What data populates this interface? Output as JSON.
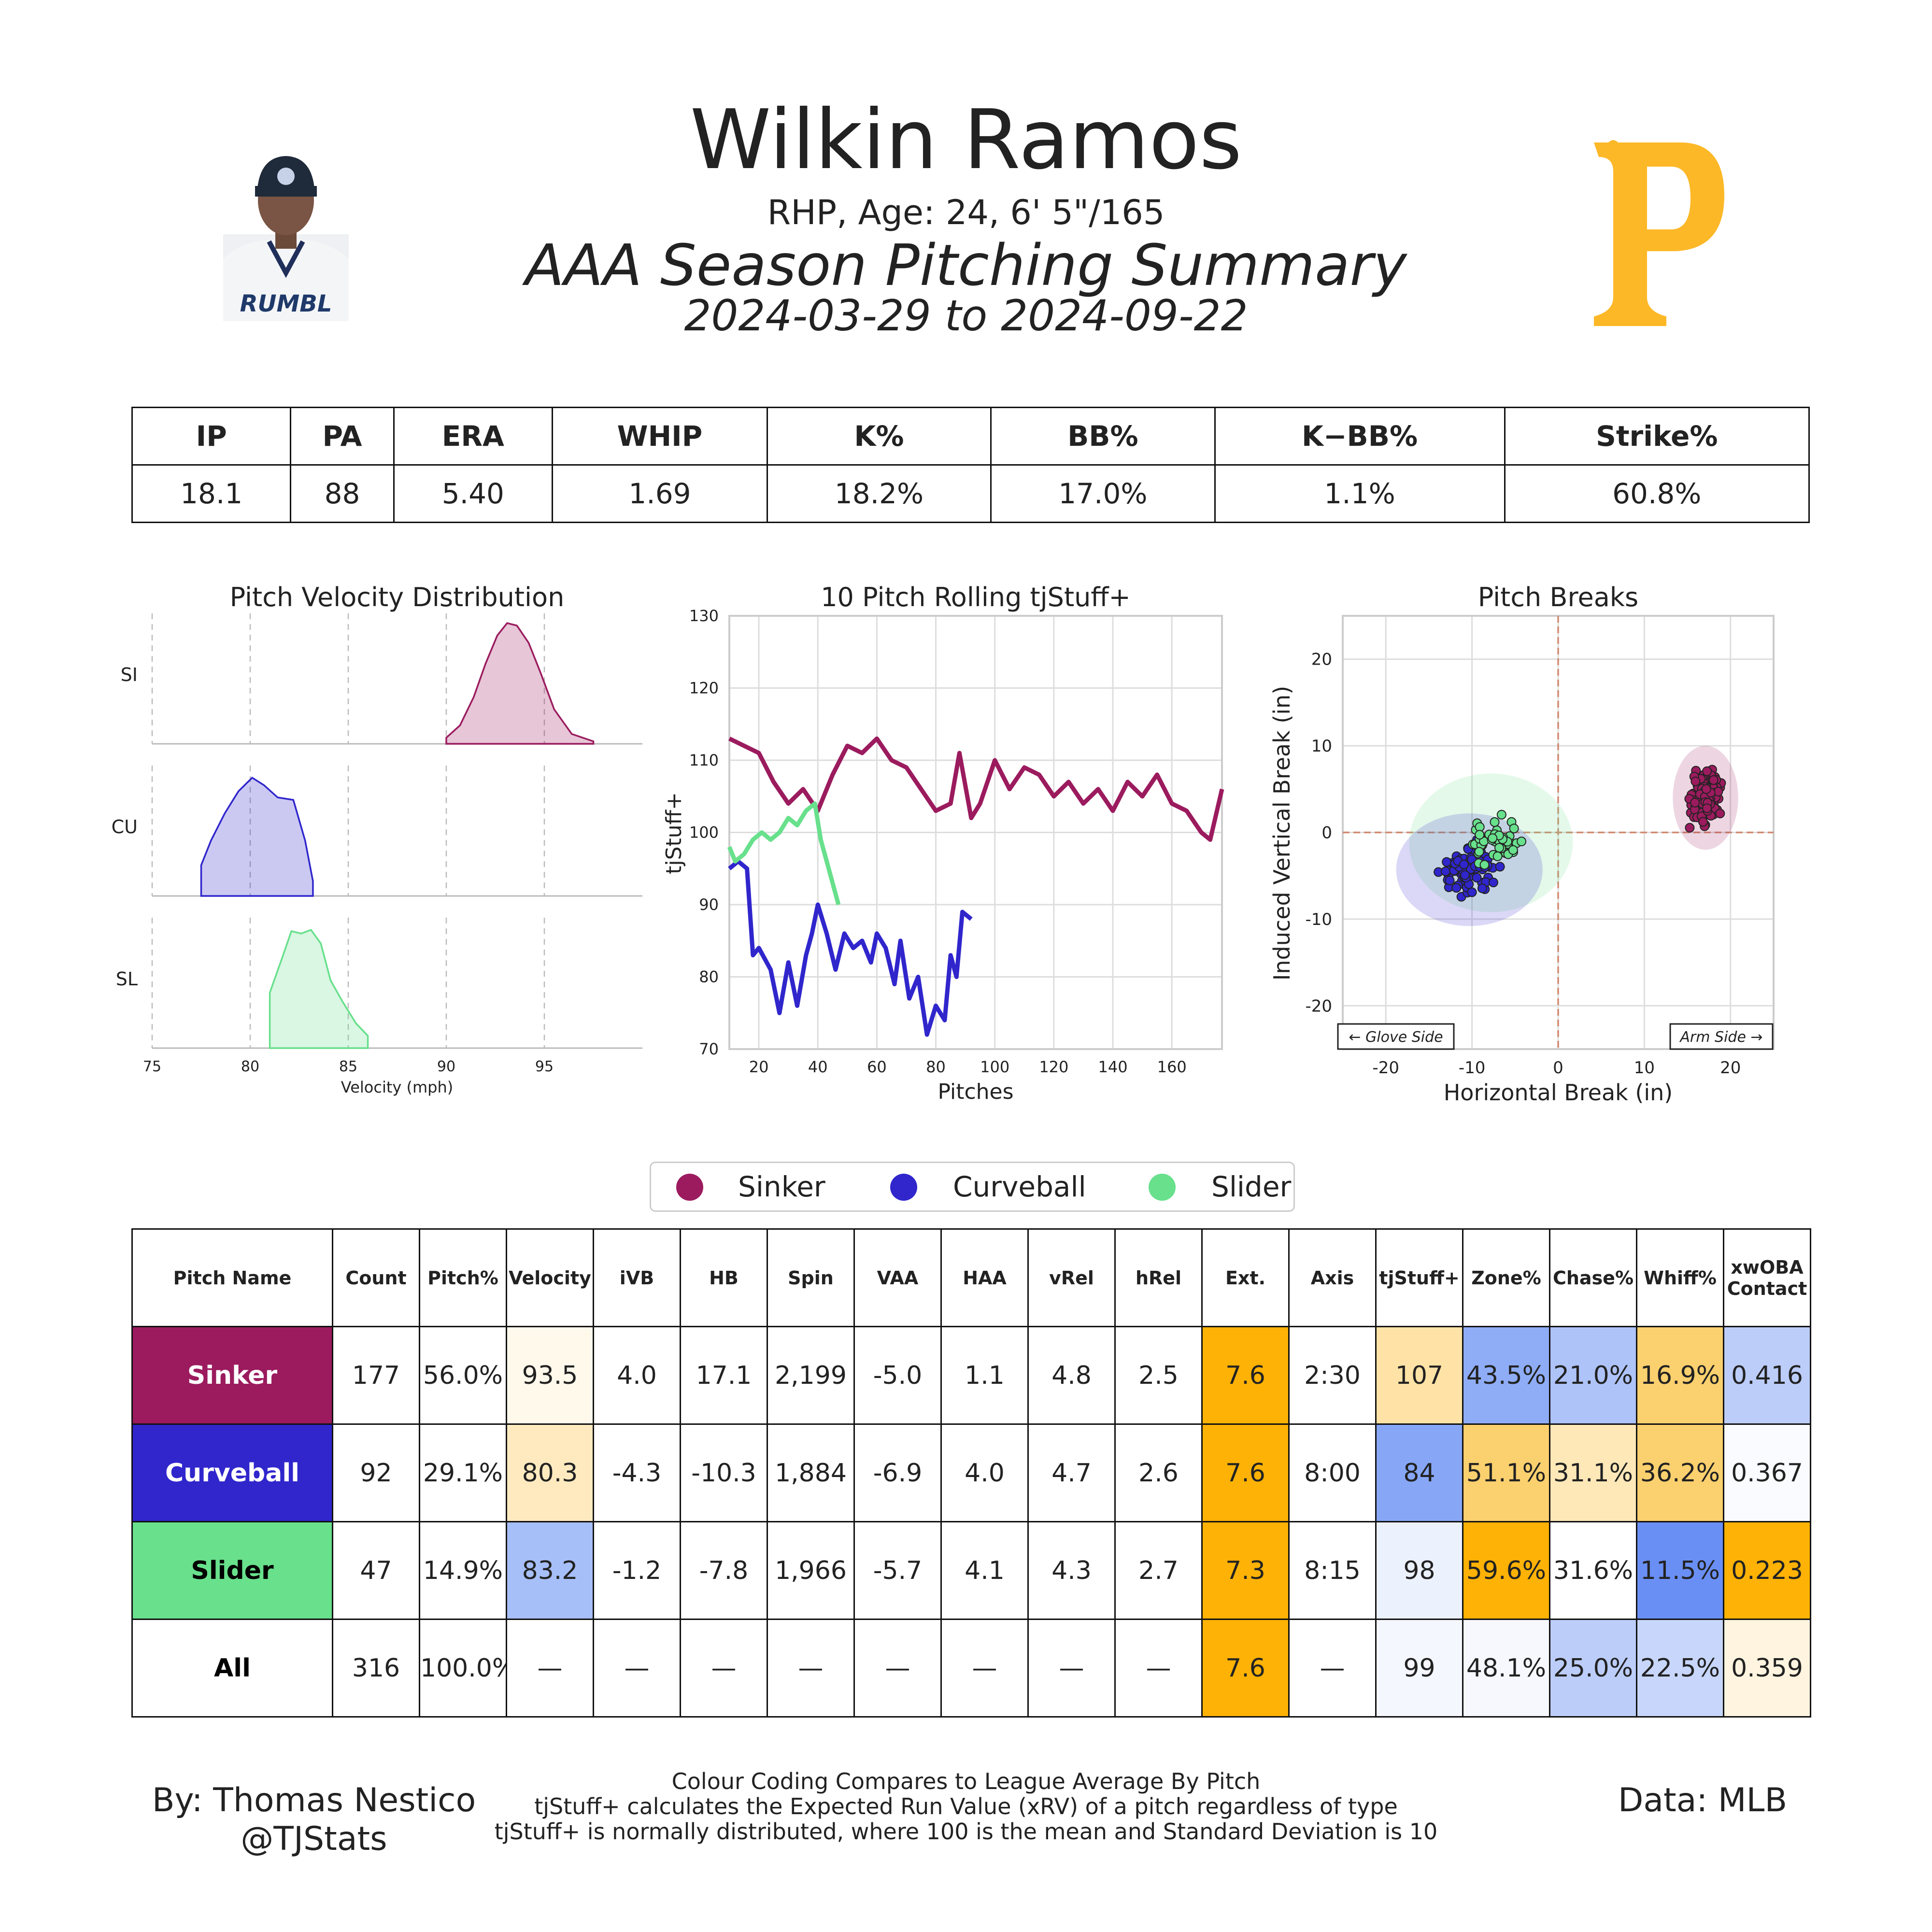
{
  "header": {
    "name": "Wilkin Ramos",
    "info": "RHP, Age: 24, 6' 5\"/165",
    "title": "AAA Season Pitching Summary",
    "dates": "2024-03-29 to 2024-09-22"
  },
  "stats": {
    "headers": [
      "IP",
      "PA",
      "ERA",
      "WHIP",
      "K%",
      "BB%",
      "K−BB%",
      "Strike%"
    ],
    "values": [
      "18.1",
      "88",
      "5.40",
      "1.69",
      "18.2%",
      "17.0%",
      "1.1%",
      "60.8%"
    ]
  },
  "colors": {
    "sinker": "#9b1b5e",
    "curveball": "#3026cc",
    "slider": "#68e08c",
    "logo": "#fdb827"
  },
  "chart_data": [
    {
      "type": "area",
      "title": "Pitch Velocity Distribution",
      "xlabel": "Velocity (mph)",
      "xlim": [
        75,
        100
      ],
      "xticks": [
        75,
        80,
        85,
        90,
        95
      ],
      "series": [
        {
          "name": "SI",
          "x": [
            90,
            90.7,
            91.4,
            92,
            92.6,
            93.1,
            93.6,
            94.2,
            94.8,
            95.5,
            96.4,
            97.5
          ],
          "y": [
            0.05,
            0.15,
            0.38,
            0.65,
            0.88,
            0.98,
            0.96,
            0.82,
            0.58,
            0.28,
            0.08,
            0.02
          ]
        },
        {
          "name": "CU",
          "x": [
            77.5,
            78,
            78.7,
            79.4,
            80.1,
            80.7,
            81.4,
            82.2,
            82.8,
            83.2
          ],
          "y": [
            0.25,
            0.45,
            0.67,
            0.85,
            0.96,
            0.9,
            0.8,
            0.78,
            0.45,
            0.12
          ]
        },
        {
          "name": "SL",
          "x": [
            81,
            81.6,
            82.1,
            82.6,
            83.1,
            83.6,
            84.1,
            84.7,
            85.4,
            86
          ],
          "y": [
            0.45,
            0.72,
            0.95,
            0.93,
            0.96,
            0.85,
            0.55,
            0.38,
            0.2,
            0.1
          ]
        }
      ]
    },
    {
      "type": "line",
      "title": "10 Pitch Rolling tjStuff+",
      "xlabel": "Pitches",
      "ylabel": "tjStuff+",
      "xlim": [
        10,
        177
      ],
      "ylim": [
        70,
        130
      ],
      "xticks": [
        20,
        40,
        60,
        80,
        100,
        120,
        140,
        160
      ],
      "yticks": [
        70,
        80,
        90,
        100,
        110,
        120,
        130
      ],
      "series": [
        {
          "name": "Sinker",
          "x": [
            10,
            15,
            20,
            25,
            30,
            35,
            40,
            45,
            50,
            55,
            60,
            65,
            70,
            75,
            80,
            85,
            88,
            92,
            95,
            100,
            105,
            110,
            115,
            120,
            125,
            130,
            135,
            140,
            145,
            150,
            155,
            160,
            165,
            170,
            173,
            177
          ],
          "y": [
            113,
            112,
            111,
            107,
            104,
            106,
            103,
            108,
            112,
            111,
            113,
            110,
            109,
            106,
            103,
            104,
            111,
            102,
            104,
            110,
            106,
            109,
            108,
            105,
            107,
            104,
            106,
            103,
            107,
            105,
            108,
            104,
            103,
            100,
            99,
            106
          ]
        },
        {
          "name": "Curveball",
          "x": [
            10,
            13,
            16,
            18,
            20,
            24,
            27,
            30,
            33,
            36,
            38,
            40,
            43,
            46,
            49,
            52,
            55,
            58,
            60,
            63,
            66,
            68,
            71,
            74,
            77,
            80,
            83,
            85,
            87,
            89,
            92
          ],
          "y": [
            95,
            96,
            95,
            83,
            84,
            81,
            75,
            82,
            76,
            83,
            86,
            90,
            86,
            81,
            86,
            84,
            85,
            82,
            86,
            84,
            79,
            85,
            77,
            80,
            72,
            76,
            74,
            83,
            80,
            89,
            88
          ]
        },
        {
          "name": "Slider",
          "x": [
            10,
            12,
            15,
            18,
            21,
            24,
            27,
            30,
            33,
            36,
            39,
            41,
            43,
            45,
            47
          ],
          "y": [
            98,
            96,
            97,
            99,
            100,
            99,
            100,
            102,
            101,
            103,
            104,
            99,
            96,
            93,
            90
          ]
        }
      ]
    },
    {
      "type": "scatter",
      "title": "Pitch Breaks",
      "xlabel": "Horizontal Break (in)",
      "ylabel": "Induced Vertical Break (in)",
      "xlim": [
        -25,
        25
      ],
      "ylim": [
        -25,
        25
      ],
      "xticks": [
        -20,
        -10,
        0,
        10,
        20
      ],
      "yticks": [
        -20,
        -10,
        0,
        10,
        20
      ],
      "annotations": [
        "← Glove Side",
        "Arm Side →"
      ],
      "series": [
        {
          "name": "Sinker",
          "center": [
            17.1,
            4.0
          ],
          "spread": [
            3.8,
            6.0
          ],
          "count": 177
        },
        {
          "name": "Curveball",
          "center": [
            -10.3,
            -4.3
          ],
          "spread": [
            8.5,
            6.5
          ],
          "count": 92
        },
        {
          "name": "Slider",
          "center": [
            -7.8,
            -1.2
          ],
          "spread": [
            9.5,
            8.0
          ],
          "count": 47
        }
      ]
    }
  ],
  "legend": [
    "Sinker",
    "Curveball",
    "Slider"
  ],
  "pitch_table": {
    "headers": [
      "Pitch Name",
      "Count",
      "Pitch%",
      "Velocity",
      "iVB",
      "HB",
      "Spin",
      "VAA",
      "HAA",
      "vRel",
      "hRel",
      "Ext.",
      "Axis",
      "tjStuff+",
      "Zone%",
      "Chase%",
      "Whiff%",
      "xwOBA Contact"
    ],
    "rows": [
      {
        "name": "Sinker",
        "cells": [
          "177",
          "56.0%",
          "93.5",
          "4.0",
          "17.1",
          "2,199",
          "-5.0",
          "1.1",
          "4.8",
          "2.5",
          "7.6",
          "2:30",
          "107",
          "43.5%",
          "21.0%",
          "16.9%",
          "0.416"
        ]
      },
      {
        "name": "Curveball",
        "cells": [
          "92",
          "29.1%",
          "80.3",
          "-4.3",
          "-10.3",
          "1,884",
          "-6.9",
          "4.0",
          "4.7",
          "2.6",
          "7.6",
          "8:00",
          "84",
          "51.1%",
          "31.1%",
          "36.2%",
          "0.367"
        ]
      },
      {
        "name": "Slider",
        "cells": [
          "47",
          "14.9%",
          "83.2",
          "-1.2",
          "-7.8",
          "1,966",
          "-5.7",
          "4.1",
          "4.3",
          "2.7",
          "7.3",
          "8:15",
          "98",
          "59.6%",
          "31.6%",
          "11.5%",
          "0.223"
        ]
      },
      {
        "name": "All",
        "cells": [
          "316",
          "100.0%",
          "—",
          "—",
          "—",
          "—",
          "—",
          "—",
          "—",
          "—",
          "7.6",
          "—",
          "99",
          "48.1%",
          "25.0%",
          "22.5%",
          "0.359"
        ]
      }
    ],
    "cell_colors": [
      [
        "#ffffff",
        "#ffffff",
        "#fff9ec",
        "#ffffff",
        "#ffffff",
        "#ffffff",
        "#ffffff",
        "#ffffff",
        "#ffffff",
        "#ffffff",
        "#fdb205",
        "#ffffff",
        "#ffe3a6",
        "#8fadf6",
        "#aec3f8",
        "#fbd06e",
        "#bccdf9"
      ],
      [
        "#ffffff",
        "#ffffff",
        "#ffeac0",
        "#ffffff",
        "#ffffff",
        "#ffffff",
        "#ffffff",
        "#ffffff",
        "#ffffff",
        "#ffffff",
        "#fdb205",
        "#ffffff",
        "#87a7f6",
        "#fbd06e",
        "#ffe8b8",
        "#fbd06e",
        "#f9fbff"
      ],
      [
        "#ffffff",
        "#ffffff",
        "#a7bff8",
        "#ffffff",
        "#ffffff",
        "#ffffff",
        "#ffffff",
        "#ffffff",
        "#ffffff",
        "#ffffff",
        "#fdb205",
        "#ffffff",
        "#ecf1fe",
        "#fdb205",
        "#ffffff",
        "#6a8ff4",
        "#fdb205"
      ],
      [
        "#ffffff",
        "#ffffff",
        "#ffffff",
        "#ffffff",
        "#ffffff",
        "#ffffff",
        "#ffffff",
        "#ffffff",
        "#ffffff",
        "#ffffff",
        "#fdb205",
        "#ffffff",
        "#f4f7fe",
        "#f6f8fe",
        "#bccdf9",
        "#c7d6fa",
        "#fff4df"
      ]
    ]
  },
  "footer": {
    "byline_1": "By: Thomas Nestico",
    "byline_2": "@TJStats",
    "note_1": "Colour Coding Compares to League Average By Pitch",
    "note_2": "tjStuff+ calculates the Expected Run Value (xRV) of a pitch regardless of type",
    "note_3": "tjStuff+ is normally distributed, where 100 is the mean and Standard Deviation is 10",
    "data": "Data: MLB"
  }
}
